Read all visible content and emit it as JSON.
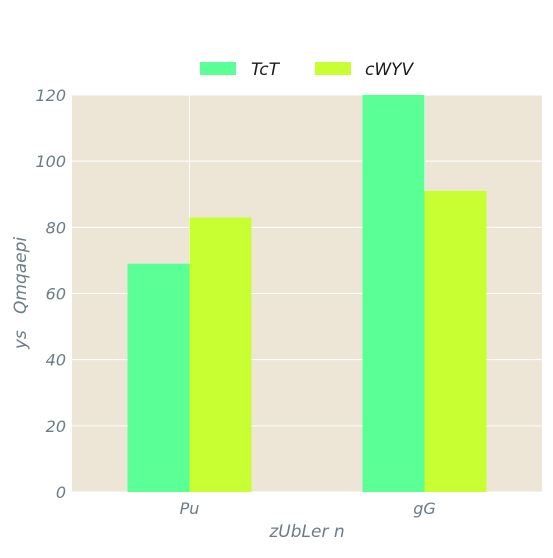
{
  "chart_data": {
    "type": "bar",
    "categories": [
      "Pu",
      "gG"
    ],
    "series": [
      {
        "name": "TcT",
        "values": [
          69,
          120
        ],
        "color": "#5aff96"
      },
      {
        "name": "cWYV",
        "values": [
          83,
          91
        ],
        "color": "#c8ff32"
      }
    ],
    "xlabel": "zUbLer n",
    "ylabel": "ys   Qmqaepi",
    "ylim": [
      0,
      120
    ],
    "yticks": [
      0,
      20,
      40,
      60,
      80,
      100,
      120
    ],
    "grid": true,
    "legend_position": "top-center",
    "plot_background": "#ede6d6",
    "grid_color": "#ffffff"
  }
}
